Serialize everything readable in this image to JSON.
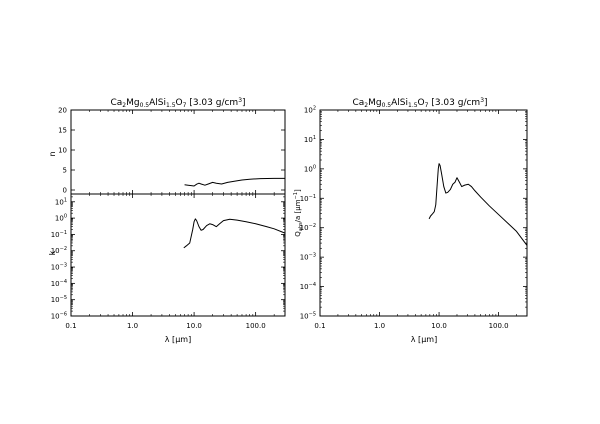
{
  "chart_data": [
    {
      "type": "line",
      "panel": "left",
      "title_parts": {
        "t1": "Ca",
        "t2": "2",
        "t3": "Mg",
        "t4": "0.5",
        "t5": "AlSi",
        "t6": "1.5",
        "t7": "O",
        "t8": "7",
        "t9": " [3.03 g/cm",
        "t10": "3",
        "t11": "]"
      },
      "xlabel_parts": {
        "sym": "λ [",
        "mu": "μ",
        "unit": "m]"
      },
      "xscale": "log",
      "xlim": [
        0.1,
        300
      ],
      "xticks": [
        {
          "value": 0.1,
          "label": "0.1"
        },
        {
          "value": 1.0,
          "label": "1.0"
        },
        {
          "value": 10.0,
          "label": "10.0"
        },
        {
          "value": 100.0,
          "label": "100.0"
        }
      ],
      "subplots": [
        {
          "name": "n",
          "ylabel": "n",
          "yscale": "linear",
          "ylim": [
            -1,
            20
          ],
          "yticks": [
            {
              "value": 0,
              "label": "0"
            },
            {
              "value": 5,
              "label": "5"
            },
            {
              "value": 10,
              "label": "10"
            },
            {
              "value": 15,
              "label": "15"
            },
            {
              "value": 20,
              "label": "20"
            }
          ],
          "series": [
            {
              "values": [
                [
                  7.0,
                  1.3
                ],
                [
                  8.0,
                  1.2
                ],
                [
                  9.0,
                  1.1
                ],
                [
                  10.0,
                  1.0
                ],
                [
                  11.0,
                  1.45
                ],
                [
                  12.0,
                  1.7
                ],
                [
                  13.0,
                  1.5
                ],
                [
                  15.0,
                  1.2
                ],
                [
                  17.0,
                  1.5
                ],
                [
                  20.0,
                  1.9
                ],
                [
                  23.0,
                  1.7
                ],
                [
                  28.0,
                  1.5
                ],
                [
                  35.0,
                  1.9
                ],
                [
                  45.0,
                  2.2
                ],
                [
                  60.0,
                  2.5
                ],
                [
                  80.0,
                  2.7
                ],
                [
                  120.0,
                  2.85
                ],
                [
                  200.0,
                  2.9
                ],
                [
                  300.0,
                  2.9
                ]
              ]
            }
          ]
        },
        {
          "name": "k",
          "ylabel": "k",
          "yscale": "log",
          "ylim": [
            1e-06,
            30
          ],
          "yticks": [
            {
              "value": 10,
              "label": "10",
              "exp": "1"
            },
            {
              "value": 1,
              "label": "10",
              "exp": "0"
            },
            {
              "value": 0.1,
              "label": "10",
              "exp": "−1"
            },
            {
              "value": 0.01,
              "label": "10",
              "exp": "−2"
            },
            {
              "value": 0.001,
              "label": "10",
              "exp": "−3"
            },
            {
              "value": 0.0001,
              "label": "10",
              "exp": "−4"
            },
            {
              "value": 1e-05,
              "label": "10",
              "exp": "−5"
            },
            {
              "value": 1e-06,
              "label": "10",
              "exp": "−6"
            }
          ],
          "series": [
            {
              "values": [
                [
                  6.8,
                  0.015
                ],
                [
                  7.5,
                  0.02
                ],
                [
                  8.5,
                  0.03
                ],
                [
                  9.5,
                  0.2
                ],
                [
                  10.0,
                  0.6
                ],
                [
                  10.5,
                  0.9
                ],
                [
                  11.0,
                  0.7
                ],
                [
                  12.0,
                  0.3
                ],
                [
                  13.0,
                  0.18
                ],
                [
                  14.0,
                  0.2
                ],
                [
                  16.0,
                  0.35
                ],
                [
                  18.0,
                  0.45
                ],
                [
                  20.0,
                  0.4
                ],
                [
                  23.0,
                  0.3
                ],
                [
                  26.0,
                  0.45
                ],
                [
                  30.0,
                  0.7
                ],
                [
                  38.0,
                  0.85
                ],
                [
                  50.0,
                  0.75
                ],
                [
                  70.0,
                  0.6
                ],
                [
                  100.0,
                  0.45
                ],
                [
                  150.0,
                  0.3
                ],
                [
                  200.0,
                  0.22
                ],
                [
                  300.0,
                  0.12
                ]
              ]
            }
          ]
        }
      ]
    },
    {
      "type": "line",
      "panel": "right",
      "title_parts": {
        "t1": "Ca",
        "t2": "2",
        "t3": "Mg",
        "t4": "0.5",
        "t5": "AlSi",
        "t6": "1.5",
        "t7": "O",
        "t8": "7",
        "t9": " [3.03 g/cm",
        "t10": "3",
        "t11": "]"
      },
      "xlabel_parts": {
        "sym": "λ [",
        "mu": "μ",
        "unit": "m]"
      },
      "ylabel_parts": {
        "q": "Q",
        "sub": "abs",
        "mid": "/a [",
        "mu": "μ",
        "unit": "m",
        "exp": "−1",
        "end": "]"
      },
      "xscale": "log",
      "yscale": "log",
      "xlim": [
        0.1,
        300
      ],
      "ylim": [
        1e-05,
        100
      ],
      "xticks": [
        {
          "value": 0.1,
          "label": "0.1"
        },
        {
          "value": 1.0,
          "label": "1.0"
        },
        {
          "value": 10.0,
          "label": "10.0"
        },
        {
          "value": 100.0,
          "label": "100.0"
        }
      ],
      "yticks": [
        {
          "value": 100,
          "label": "10",
          "exp": "2"
        },
        {
          "value": 10,
          "label": "10",
          "exp": "1"
        },
        {
          "value": 1,
          "label": "10",
          "exp": "0"
        },
        {
          "value": 0.1,
          "label": "10",
          "exp": "−1"
        },
        {
          "value": 0.01,
          "label": "10",
          "exp": "−2"
        },
        {
          "value": 0.001,
          "label": "10",
          "exp": "−3"
        },
        {
          "value": 0.0001,
          "label": "10",
          "exp": "−4"
        },
        {
          "value": 1e-05,
          "label": "10",
          "exp": "−5"
        }
      ],
      "series": [
        {
          "values": [
            [
              6.8,
              0.02
            ],
            [
              7.2,
              0.025
            ],
            [
              7.8,
              0.03
            ],
            [
              8.3,
              0.035
            ],
            [
              8.8,
              0.06
            ],
            [
              9.3,
              0.3
            ],
            [
              9.7,
              1.0
            ],
            [
              10.0,
              1.5
            ],
            [
              10.4,
              1.3
            ],
            [
              11.0,
              0.7
            ],
            [
              12.0,
              0.25
            ],
            [
              13.0,
              0.15
            ],
            [
              14.0,
              0.16
            ],
            [
              15.5,
              0.2
            ],
            [
              17.0,
              0.3
            ],
            [
              18.5,
              0.35
            ],
            [
              20.0,
              0.5
            ],
            [
              22.0,
              0.35
            ],
            [
              24.0,
              0.25
            ],
            [
              27.0,
              0.28
            ],
            [
              31.0,
              0.3
            ],
            [
              35.0,
              0.25
            ],
            [
              40.0,
              0.18
            ],
            [
              50.0,
              0.11
            ],
            [
              70.0,
              0.055
            ],
            [
              100.0,
              0.028
            ],
            [
              150.0,
              0.013
            ],
            [
              200.0,
              0.0075
            ],
            [
              300.0,
              0.0025
            ]
          ]
        }
      ]
    }
  ]
}
